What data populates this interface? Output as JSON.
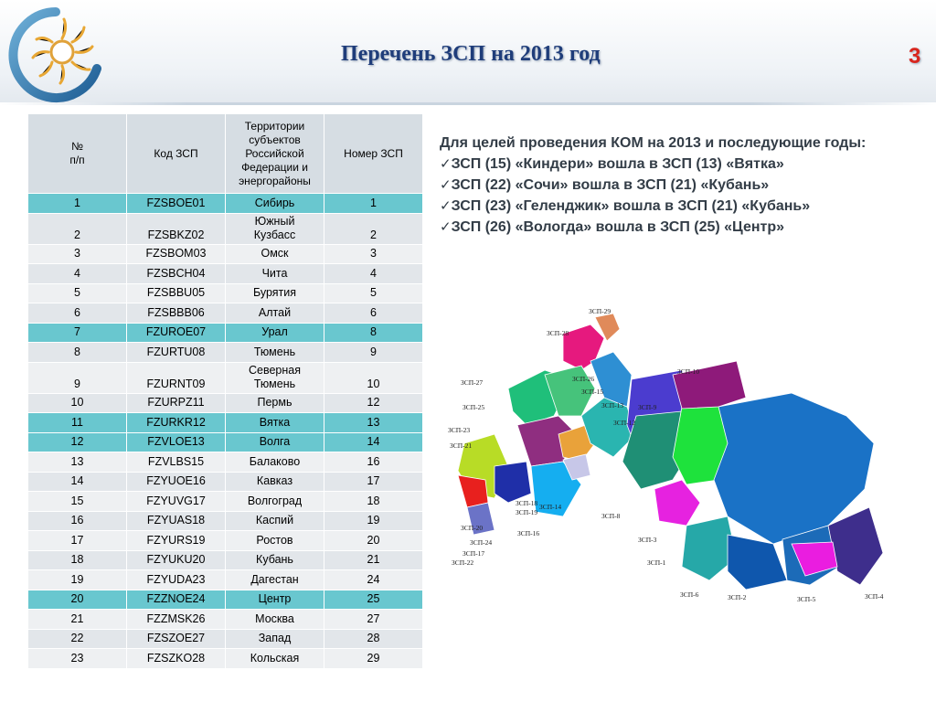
{
  "header": {
    "title": "Перечень ЗСП на 2013 год",
    "page_number": "3"
  },
  "table": {
    "headers": [
      "№\nп/п",
      "Код ЗСП",
      "Территории субъектов Российской Федерации и энергорайоны",
      "Номер ЗСП"
    ],
    "rows": [
      {
        "n": "1",
        "code": "FZSBOE01",
        "territory": "Сибирь",
        "zsp": "1"
      },
      {
        "n": "2",
        "code": "FZSBKZ02",
        "territory": "Южный Кузбасс",
        "zsp": "2"
      },
      {
        "n": "3",
        "code": "FZSBOM03",
        "territory": "Омск",
        "zsp": "3"
      },
      {
        "n": "4",
        "code": "FZSBCH04",
        "territory": "Чита",
        "zsp": "4"
      },
      {
        "n": "5",
        "code": "FZSBBU05",
        "territory": "Бурятия",
        "zsp": "5"
      },
      {
        "n": "6",
        "code": "FZSBBB06",
        "territory": "Алтай",
        "zsp": "6"
      },
      {
        "n": "7",
        "code": "FZUROE07",
        "territory": "Урал",
        "zsp": "8"
      },
      {
        "n": "8",
        "code": "FZURTU08",
        "territory": "Тюмень",
        "zsp": "9"
      },
      {
        "n": "9",
        "code": "FZURNT09",
        "territory": "Северная Тюмень",
        "zsp": "10"
      },
      {
        "n": "10",
        "code": "FZURPZ11",
        "territory": "Пермь",
        "zsp": "12"
      },
      {
        "n": "11",
        "code": "FZURKR12",
        "territory": "Вятка",
        "zsp": "13"
      },
      {
        "n": "12",
        "code": "FZVLOE13",
        "territory": "Волга",
        "zsp": "14"
      },
      {
        "n": "13",
        "code": "FZVLBS15",
        "territory": "Балаково",
        "zsp": "16"
      },
      {
        "n": "14",
        "code": "FZYUOE16",
        "territory": "Кавказ",
        "zsp": "17"
      },
      {
        "n": "15",
        "code": "FZYUVG17",
        "territory": "Волгоград",
        "zsp": "18"
      },
      {
        "n": "16",
        "code": "FZYUAS18",
        "territory": "Каспий",
        "zsp": "19"
      },
      {
        "n": "17",
        "code": "FZYURS19",
        "territory": "Ростов",
        "zsp": "20"
      },
      {
        "n": "18",
        "code": "FZYUKU20",
        "territory": "Кубань",
        "zsp": "21"
      },
      {
        "n": "19",
        "code": "FZYUDA23",
        "territory": "Дагестан",
        "zsp": "24"
      },
      {
        "n": "20",
        "code": "FZZNOE24",
        "territory": "Центр",
        "zsp": "25"
      },
      {
        "n": "21",
        "code": "FZZMSK26",
        "territory": "Москва",
        "zsp": "27"
      },
      {
        "n": "22",
        "code": "FZSZOE27",
        "territory": "Запад",
        "zsp": "28"
      },
      {
        "n": "23",
        "code": "FZSZKO28",
        "territory": "Кольская",
        "zsp": "29"
      }
    ]
  },
  "notes": {
    "intro": "Для целей проведения КОМ на 2013 и последующие годы:",
    "items": [
      "ЗСП (15) «Киндери» вошла в ЗСП (13) «Вятка»",
      "ЗСП (22) «Сочи» вошла в ЗСП (21) «Кубань»",
      "ЗСП (23) «Геленджик» вошла в ЗСП (21) «Кубань»",
      "ЗСП (26) «Вологда» вошла в ЗСП (25) «Центр»"
    ],
    "check_glyph": "✓"
  },
  "map": {
    "labels": [
      "ЗСП-29",
      "ЗСП-28",
      "ЗСП-27",
      "ЗСП-26",
      "ЗСП-25",
      "ЗСП-15",
      "ЗСП-13",
      "ЗСП-12",
      "ЗСП-9",
      "ЗСП-10",
      "ЗСП-23",
      "ЗСП-21",
      "ЗСП-19",
      "ЗСП-18",
      "ЗСП-14",
      "ЗСП-20",
      "ЗСП-16",
      "ЗСП-24",
      "ЗСП-17",
      "ЗСП-22",
      "ЗСП-8",
      "ЗСП-3",
      "ЗСП-1",
      "ЗСП-6",
      "ЗСП-2",
      "ЗСП-5",
      "ЗСП-4"
    ]
  },
  "colors": {
    "title": "#1f3d7a",
    "page_number": "#d9251d",
    "highlight_row": "#69c7cf",
    "header_cell": "#d6dde3"
  }
}
